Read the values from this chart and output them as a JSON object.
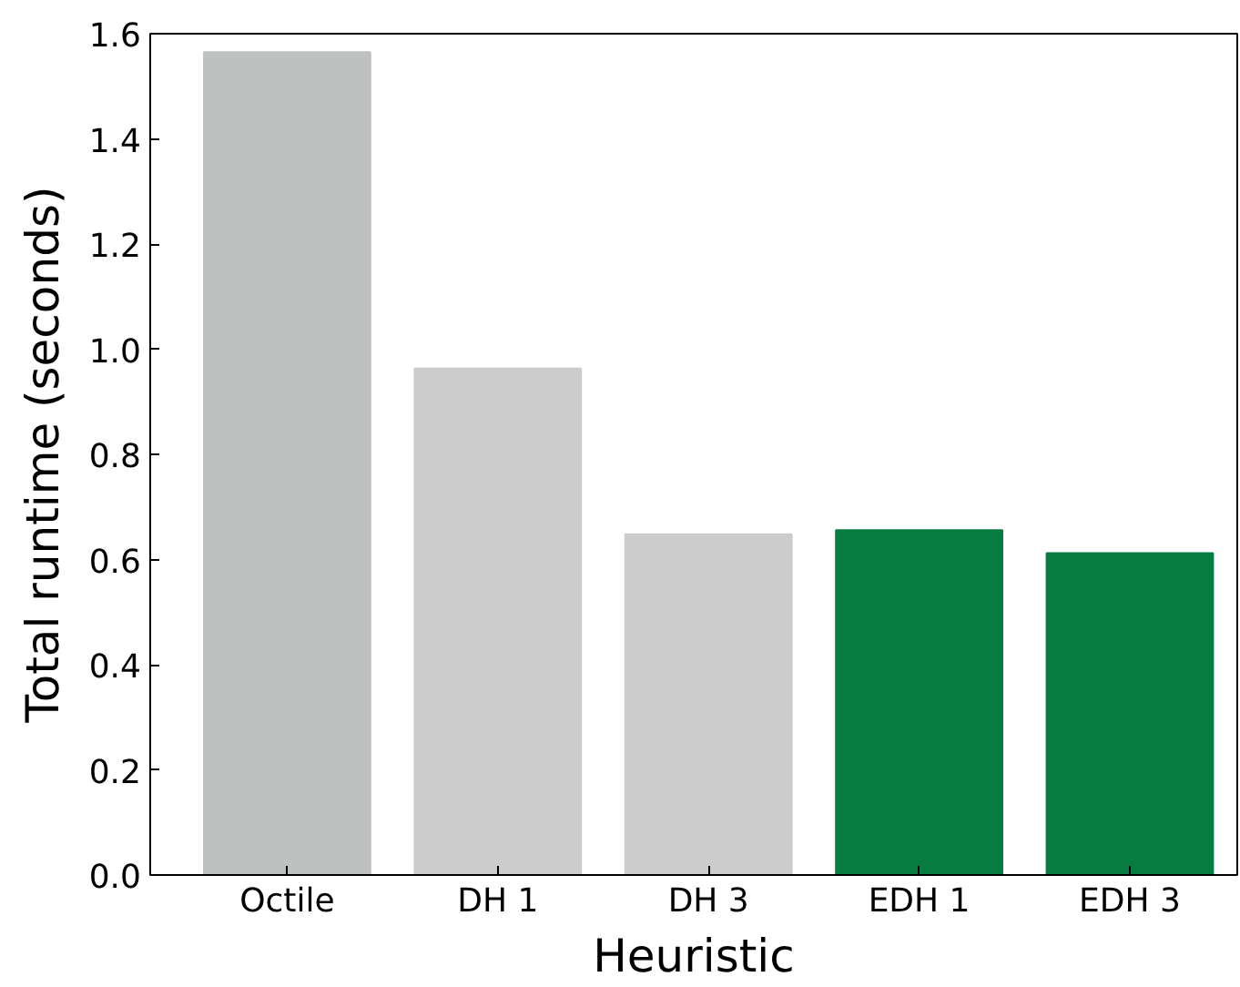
{
  "chart_data": {
    "type": "bar",
    "xlabel": "Heuristic",
    "ylabel": "Total runtime (seconds)",
    "categories": [
      "Octile",
      "DH 1",
      "DH 3",
      "EDH 1",
      "EDH 3"
    ],
    "values": [
      1.565,
      0.963,
      0.648,
      0.656,
      0.612
    ],
    "colors": [
      "#bfc1c0",
      "#cccccc",
      "#cccccc",
      "#077c40",
      "#077c40"
    ],
    "ylim": [
      0,
      1.6
    ],
    "yticks": [
      {
        "value": 0,
        "label": "0.0"
      },
      {
        "value": 0.2,
        "label": "0.2"
      },
      {
        "value": 0.4,
        "label": "0.4"
      },
      {
        "value": 0.6,
        "label": "0.6"
      },
      {
        "value": 0.8,
        "label": "0.8"
      },
      {
        "value": 1.0,
        "label": "1.0"
      },
      {
        "value": 1.2,
        "label": "1.2"
      },
      {
        "value": 1.4,
        "label": "1.4"
      },
      {
        "value": 1.6,
        "label": "1.6"
      }
    ],
    "grid": false
  }
}
